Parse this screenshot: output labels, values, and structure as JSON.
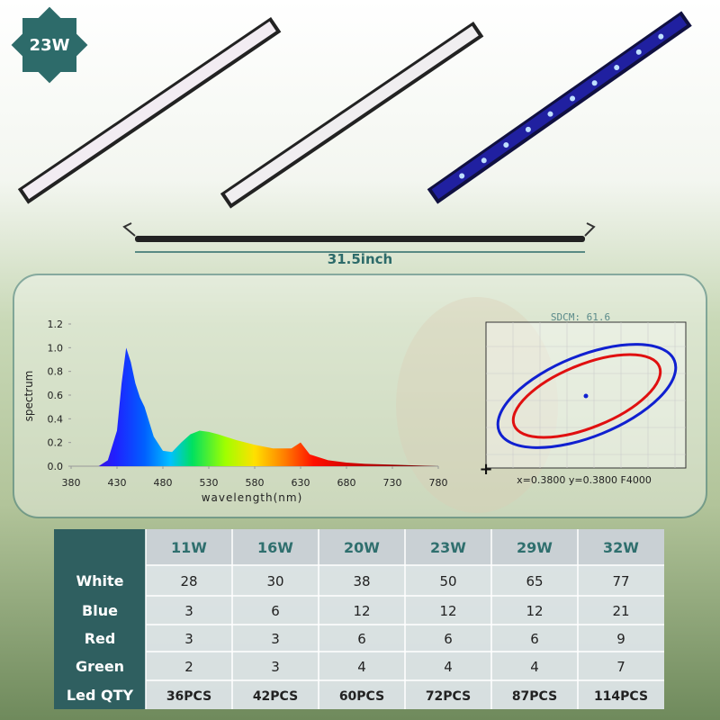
{
  "badge": "23W",
  "length_label": "31.5inch",
  "chart_data": {
    "type": "area",
    "xlabel": "wavelength(nm)",
    "ylabel": "spectrum",
    "x": [
      380,
      410,
      420,
      430,
      435,
      440,
      445,
      450,
      455,
      460,
      470,
      480,
      490,
      500,
      510,
      520,
      530,
      540,
      560,
      580,
      600,
      620,
      630,
      640,
      660,
      680,
      700,
      740,
      780
    ],
    "values": [
      0,
      0,
      0.05,
      0.3,
      0.7,
      1.0,
      0.88,
      0.7,
      0.58,
      0.5,
      0.25,
      0.13,
      0.12,
      0.2,
      0.27,
      0.3,
      0.29,
      0.27,
      0.22,
      0.18,
      0.15,
      0.15,
      0.2,
      0.1,
      0.05,
      0.03,
      0.02,
      0.01,
      0
    ],
    "xlim": [
      380,
      780
    ],
    "ylim": [
      0,
      1.2
    ],
    "xticks": [
      380,
      430,
      480,
      530,
      580,
      630,
      680,
      730,
      780
    ],
    "yticks": [
      {
        "value": 0,
        "label": "0.0"
      },
      {
        "value": 0.2,
        "label": "0.2"
      },
      {
        "value": 0.4,
        "label": "0.4"
      },
      {
        "value": 0.6,
        "label": "0.6"
      },
      {
        "value": 0.8,
        "label": "0.8"
      },
      {
        "value": 1,
        "label": "1.0"
      },
      {
        "value": 1.2,
        "label": "1.2"
      }
    ]
  },
  "cie": {
    "title": "SDCM: 61.6",
    "coords": "x=0.3800 y=0.3800 F4000"
  },
  "table": {
    "columns": [
      "11W",
      "16W",
      "20W",
      "23W",
      "29W",
      "32W"
    ],
    "rows": [
      {
        "label": "White",
        "cells": [
          28,
          30,
          38,
          50,
          65,
          77
        ]
      },
      {
        "label": "Blue",
        "cells": [
          3,
          6,
          12,
          12,
          12,
          21
        ]
      },
      {
        "label": "Red",
        "cells": [
          3,
          3,
          6,
          6,
          6,
          9
        ]
      },
      {
        "label": "Green",
        "cells": [
          2,
          3,
          4,
          4,
          4,
          7
        ]
      },
      {
        "label": "Led QTY",
        "cells": [
          "36PCS",
          "42PCS",
          "60PCS",
          "72PCS",
          "87PCS",
          "114PCS"
        ]
      }
    ]
  }
}
